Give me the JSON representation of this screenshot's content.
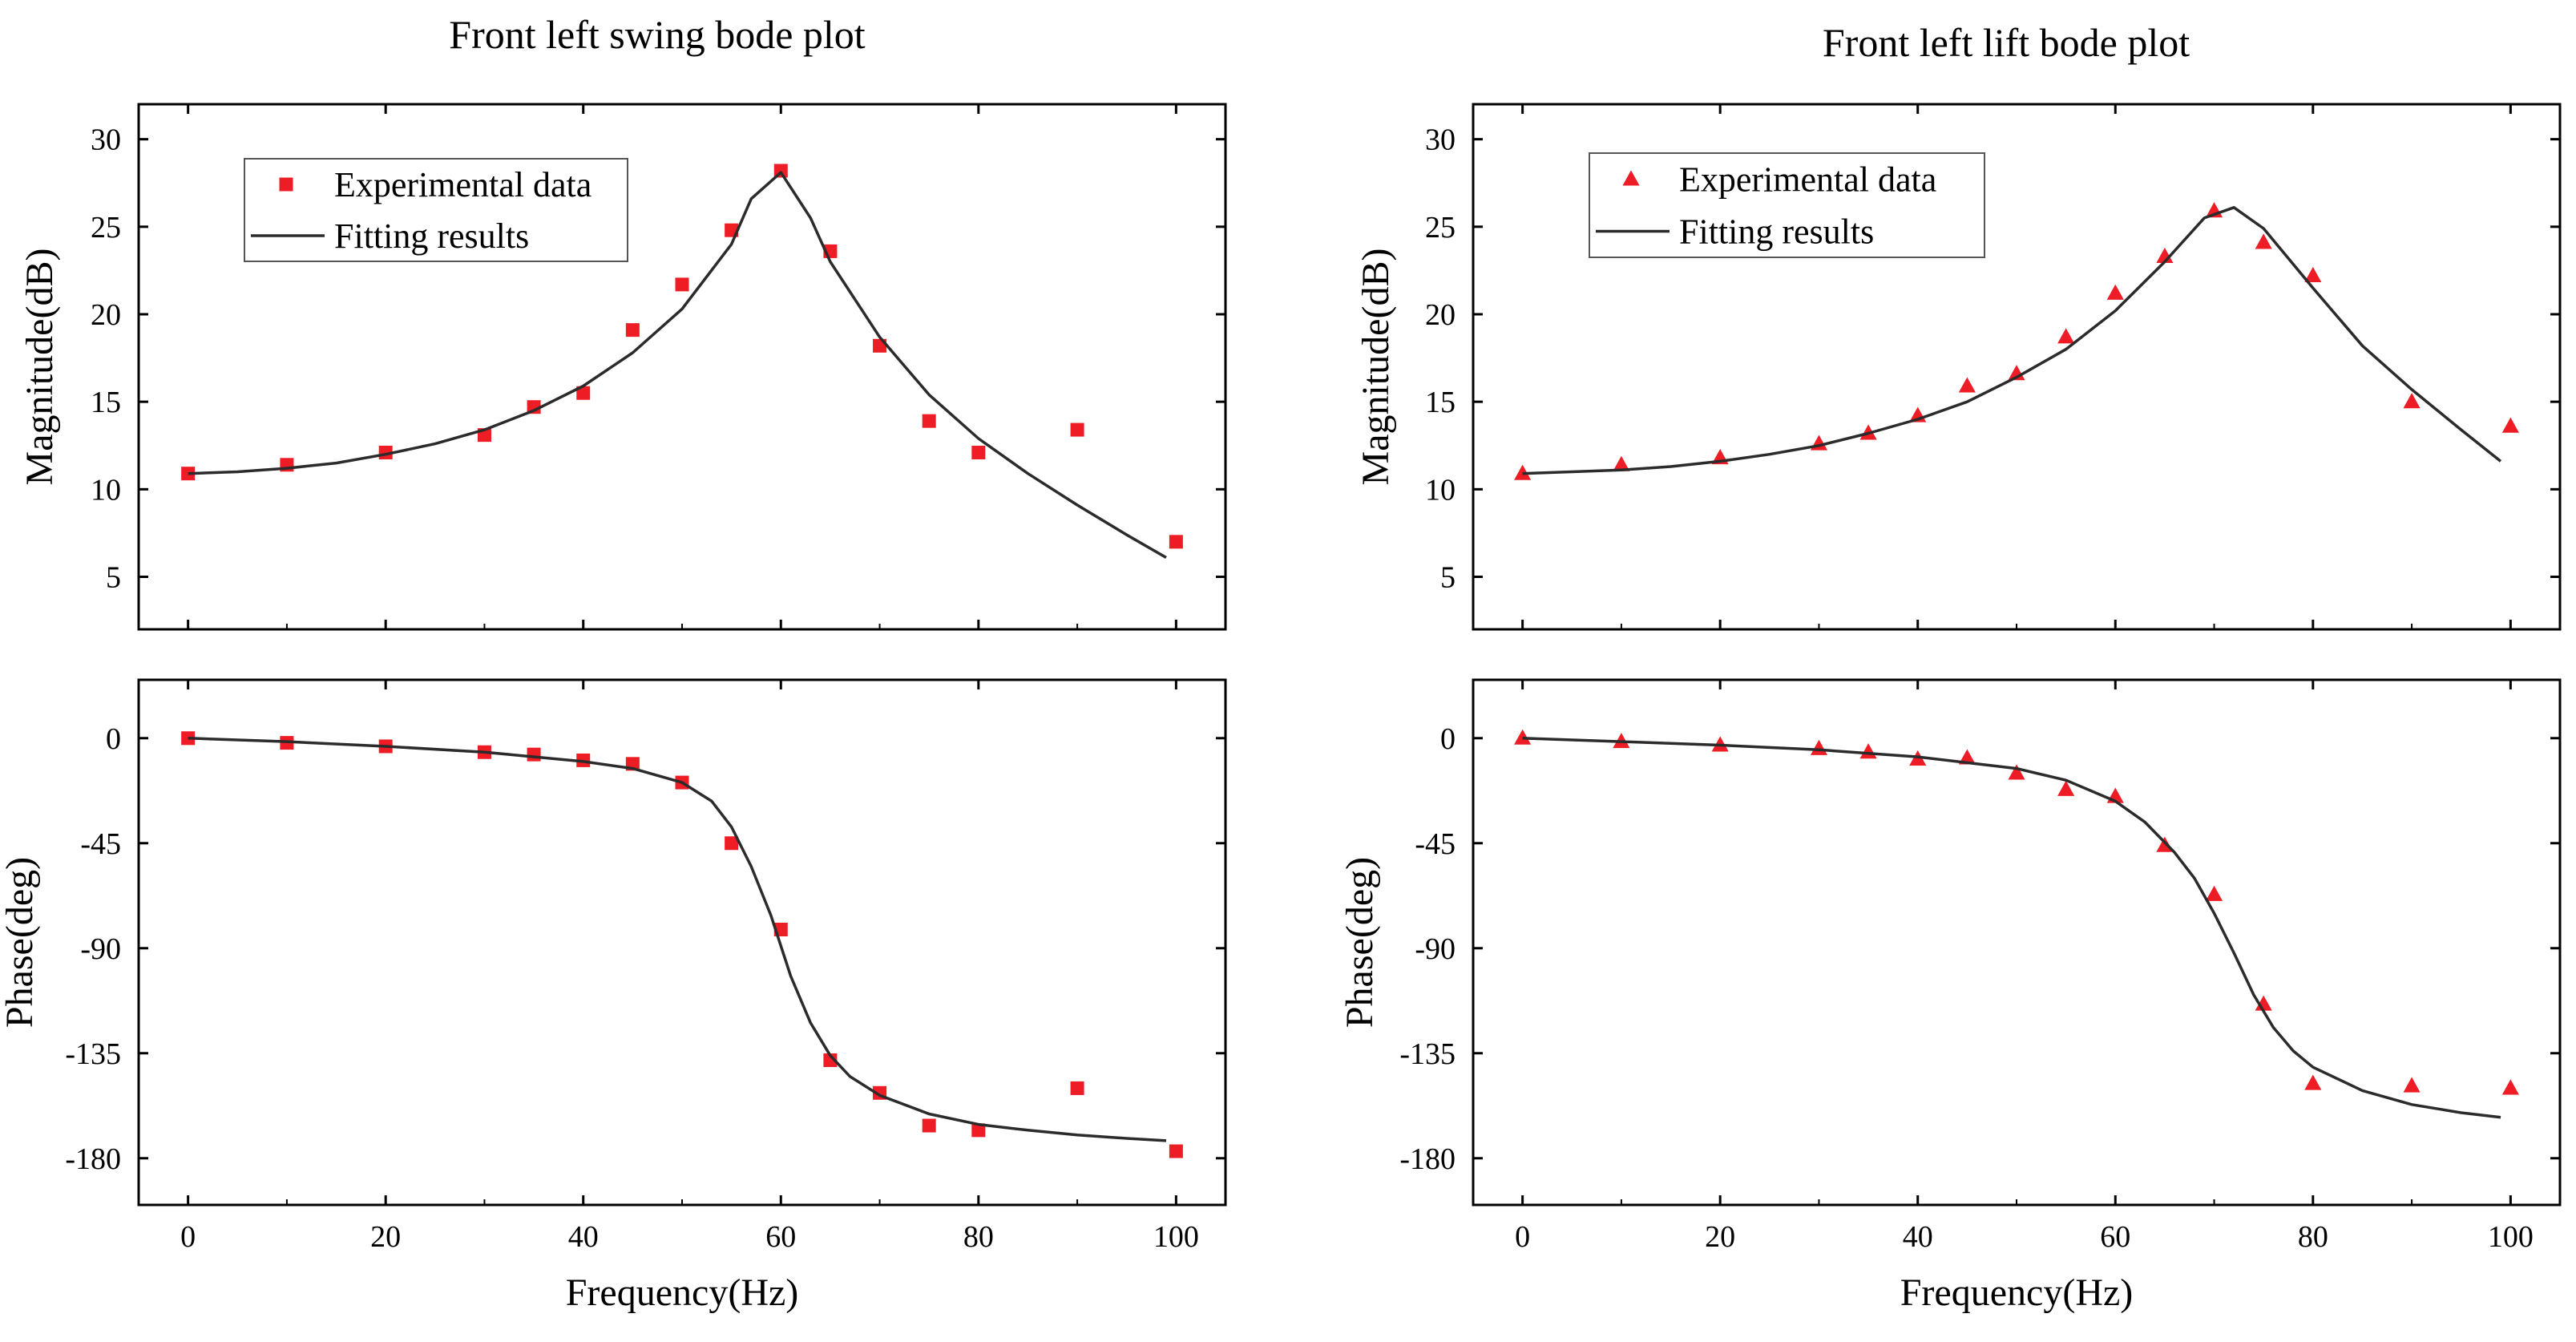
{
  "colors": {
    "marker": "#ee1c25",
    "fit_line": "#2b2b2b",
    "axis": "#000000",
    "background": "#ffffff"
  },
  "chart_data": [
    {
      "type": "scatter+line",
      "id": "swing-magnitude",
      "panel": "left",
      "title": "Front left swing bode plot",
      "xlabel": "",
      "ylabel": "Magnitude(dB)",
      "xlim": [
        -5,
        105
      ],
      "ylim": [
        2,
        32
      ],
      "xticks": [
        0,
        20,
        40,
        60,
        80,
        100
      ],
      "xtick_labels_shown": false,
      "yticks": [
        5,
        10,
        15,
        20,
        25,
        30
      ],
      "marker": "square",
      "legend": {
        "placement": "top-left",
        "items": [
          "Experimental data",
          "Fitting results"
        ]
      },
      "series": [
        {
          "name": "Experimental data",
          "kind": "points",
          "x": [
            0,
            10,
            20,
            30,
            35,
            40,
            45,
            50,
            55,
            60,
            65,
            70,
            75,
            80,
            90,
            100
          ],
          "y": [
            10.9,
            11.4,
            12.1,
            13.1,
            14.7,
            15.5,
            19.1,
            21.7,
            24.8,
            28.2,
            23.6,
            18.2,
            13.9,
            12.1,
            13.4,
            7.0
          ]
        },
        {
          "name": "Fitting results",
          "kind": "line",
          "x": [
            0,
            5,
            10,
            15,
            20,
            25,
            30,
            35,
            40,
            45,
            50,
            55,
            57,
            60,
            63,
            65,
            70,
            75,
            80,
            85,
            90,
            95,
            99
          ],
          "y": [
            10.9,
            11.0,
            11.2,
            11.5,
            12.0,
            12.6,
            13.4,
            14.5,
            15.9,
            17.8,
            20.3,
            24.0,
            26.6,
            28.1,
            25.5,
            23.0,
            18.7,
            15.4,
            12.9,
            10.9,
            9.1,
            7.4,
            6.1
          ]
        }
      ]
    },
    {
      "type": "scatter+line",
      "id": "swing-phase",
      "panel": "left",
      "title": "",
      "xlabel": "Frequency(Hz)",
      "ylabel": "Phase(deg)",
      "xlim": [
        -5,
        105
      ],
      "ylim": [
        -200,
        25
      ],
      "xticks": [
        0,
        20,
        40,
        60,
        80,
        100
      ],
      "yticks": [
        0,
        -45,
        -90,
        -135,
        -180
      ],
      "marker": "square",
      "series": [
        {
          "name": "Experimental data",
          "kind": "points",
          "x": [
            0,
            10,
            20,
            30,
            35,
            40,
            45,
            50,
            55,
            60,
            65,
            70,
            75,
            80,
            90,
            100
          ],
          "y": [
            0,
            -2,
            -3.5,
            -6,
            -7,
            -9.5,
            -11,
            -19,
            -45,
            -82,
            -138,
            -152,
            -166,
            -168,
            -150,
            -177
          ]
        },
        {
          "name": "Fitting results",
          "kind": "line",
          "x": [
            0,
            10,
            20,
            30,
            40,
            45,
            50,
            53,
            55,
            57,
            59,
            61,
            63,
            65,
            67,
            70,
            75,
            80,
            85,
            90,
            95,
            99
          ],
          "y": [
            0,
            -1.5,
            -3.5,
            -6,
            -10,
            -13,
            -19,
            -27,
            -38,
            -55,
            -76,
            -102,
            -122,
            -136,
            -145,
            -153,
            -161,
            -165.5,
            -168,
            -170,
            -171.5,
            -172.5
          ]
        }
      ]
    },
    {
      "type": "scatter+line",
      "id": "lift-magnitude",
      "panel": "right",
      "title": "Front left lift bode plot",
      "xlabel": "",
      "ylabel": "Magnitude(dB)",
      "xlim": [
        -5,
        105
      ],
      "ylim": [
        2,
        32
      ],
      "xticks": [
        0,
        20,
        40,
        60,
        80,
        100
      ],
      "xtick_labels_shown": false,
      "yticks": [
        5,
        10,
        15,
        20,
        25,
        30
      ],
      "marker": "triangle",
      "legend": {
        "placement": "top-left",
        "items": [
          "Experimental data",
          "Fitting results"
        ]
      },
      "series": [
        {
          "name": "Experimental data",
          "kind": "points",
          "x": [
            0,
            10,
            20,
            30,
            35,
            40,
            45,
            50,
            55,
            60,
            65,
            70,
            75,
            80,
            90,
            100
          ],
          "y": [
            10.9,
            11.4,
            11.8,
            12.6,
            13.2,
            14.2,
            15.9,
            16.6,
            18.7,
            21.2,
            23.3,
            25.9,
            24.1,
            22.2,
            15.0,
            13.6
          ]
        },
        {
          "name": "Fitting results",
          "kind": "line",
          "x": [
            0,
            5,
            10,
            15,
            20,
            25,
            30,
            35,
            40,
            45,
            50,
            55,
            60,
            65,
            69,
            72,
            75,
            80,
            85,
            90,
            95,
            99
          ],
          "y": [
            10.9,
            11.0,
            11.1,
            11.3,
            11.6,
            12.0,
            12.5,
            13.2,
            14.0,
            15.0,
            16.4,
            18.0,
            20.2,
            23.0,
            25.5,
            26.1,
            24.9,
            21.5,
            18.2,
            15.7,
            13.4,
            11.6
          ]
        }
      ]
    },
    {
      "type": "scatter+line",
      "id": "lift-phase",
      "panel": "right",
      "title": "",
      "xlabel": "Frequency(Hz)",
      "ylabel": "Phase(deg)",
      "xlim": [
        -5,
        105
      ],
      "ylim": [
        -200,
        25
      ],
      "xticks": [
        0,
        20,
        40,
        60,
        80,
        100
      ],
      "yticks": [
        0,
        -45,
        -90,
        -135,
        -180
      ],
      "marker": "triangle",
      "series": [
        {
          "name": "Experimental data",
          "kind": "points",
          "x": [
            0,
            10,
            20,
            30,
            35,
            40,
            45,
            50,
            55,
            60,
            65,
            70,
            75,
            80,
            90,
            100
          ],
          "y": [
            0,
            -1.5,
            -3,
            -4.5,
            -6,
            -9,
            -8.5,
            -15,
            -22,
            -25,
            -46,
            -67,
            -114,
            -148,
            -149,
            -150
          ]
        },
        {
          "name": "Fitting results",
          "kind": "line",
          "x": [
            0,
            10,
            20,
            30,
            40,
            50,
            55,
            60,
            63,
            66,
            68,
            70,
            72,
            74,
            76,
            78,
            80,
            85,
            90,
            95,
            99
          ],
          "y": [
            0,
            -1.5,
            -3,
            -5,
            -8,
            -13,
            -18,
            -27,
            -36,
            -49,
            -60,
            -75,
            -92,
            -110,
            -124,
            -134,
            -141,
            -151,
            -157,
            -160.5,
            -162.5
          ]
        }
      ]
    }
  ]
}
